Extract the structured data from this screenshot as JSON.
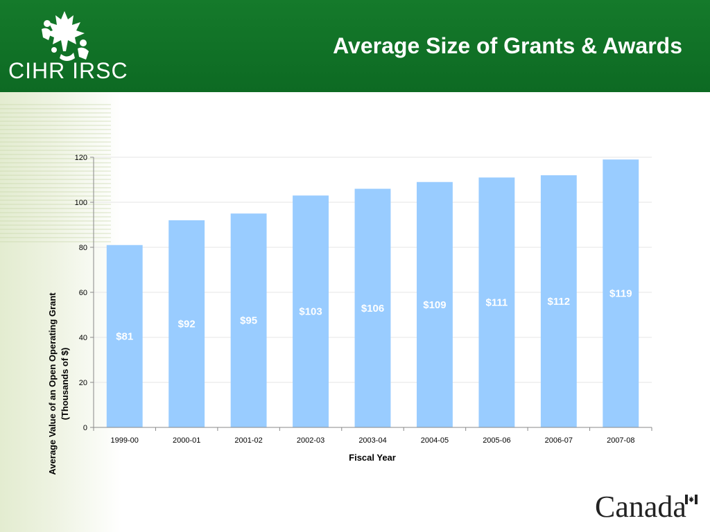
{
  "header": {
    "logo_text": "CIHR IRSC",
    "title": "Average Size of Grants & Awards"
  },
  "footer": {
    "wordmark": "Canada"
  },
  "colors": {
    "header_green": "#157a2b",
    "bar_fill": "#99ccff",
    "label_text": "#ffffff",
    "grid": "#e6e6e6"
  },
  "chart_data": {
    "type": "bar",
    "categories": [
      "1999-00",
      "2000-01",
      "2001-02",
      "2002-03",
      "2003-04",
      "2004-05",
      "2005-06",
      "2006-07",
      "2007-08"
    ],
    "values": [
      81,
      92,
      95,
      103,
      106,
      109,
      111,
      112,
      119
    ],
    "data_labels": [
      "$81",
      "$92",
      "$95",
      "$103",
      "$106",
      "$109",
      "$111",
      "$112",
      "$119"
    ],
    "xlabel": "Fiscal Year",
    "ylabel_line1": "Average Value of an Open Operating Grant",
    "ylabel_line2": "(Thousands of $)",
    "ylim": [
      0,
      120
    ],
    "yticks": [
      0,
      20,
      40,
      60,
      80,
      100,
      120
    ],
    "grid": true,
    "legend": "none"
  }
}
